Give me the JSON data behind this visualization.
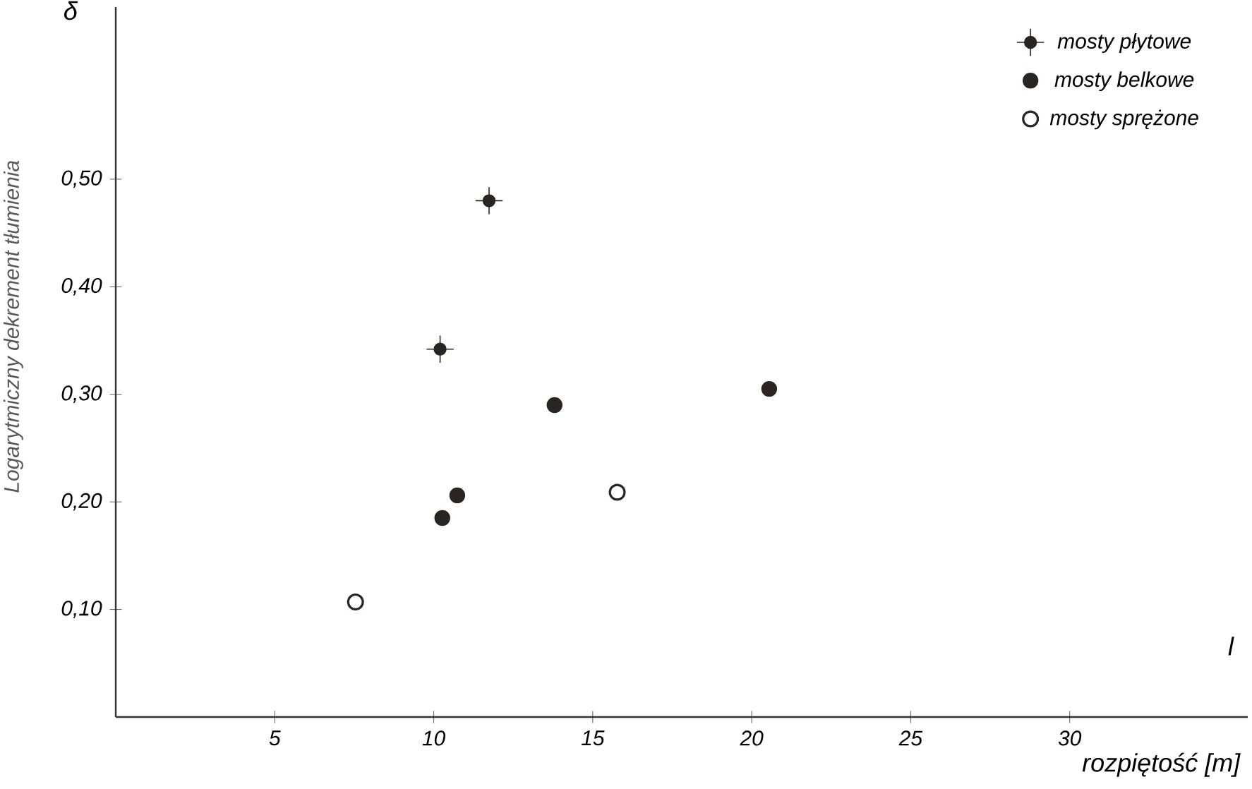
{
  "chart_data": {
    "type": "scatter",
    "xlabel": "rozpiętość [m]",
    "ylabel": "Logarytmiczny dekrement tłumienia",
    "annotations": [
      "δ",
      "l"
    ],
    "xlim": [
      0,
      35.6
    ],
    "ylim": [
      0,
      0.66
    ],
    "xticks": [
      5,
      10,
      15,
      20,
      25,
      30
    ],
    "yticks": [
      {
        "value": 0.1,
        "label": "0,10"
      },
      {
        "value": 0.2,
        "label": "0,20"
      },
      {
        "value": 0.3,
        "label": "0,30"
      },
      {
        "value": 0.4,
        "label": "0,40"
      },
      {
        "value": 0.5,
        "label": "0,50"
      }
    ],
    "legend": "top right",
    "grid": false,
    "series": [
      {
        "name": "mosty płytowe",
        "color": "#2a2520",
        "marker": "cross",
        "x": [
          11.74,
          10.2
        ],
        "values": [
          0.48,
          0.342
        ]
      },
      {
        "name": "mosty belkowe",
        "color": "#2a2520",
        "marker": "circle",
        "x": [
          10.27,
          10.74,
          13.8,
          20.55
        ],
        "values": [
          0.185,
          0.206,
          0.29,
          0.305
        ]
      },
      {
        "name": "mosty sprężone",
        "color": "#2a2520",
        "marker": "circle_open",
        "x": [
          7.54,
          15.77
        ],
        "values": [
          0.107,
          0.209
        ]
      }
    ]
  }
}
